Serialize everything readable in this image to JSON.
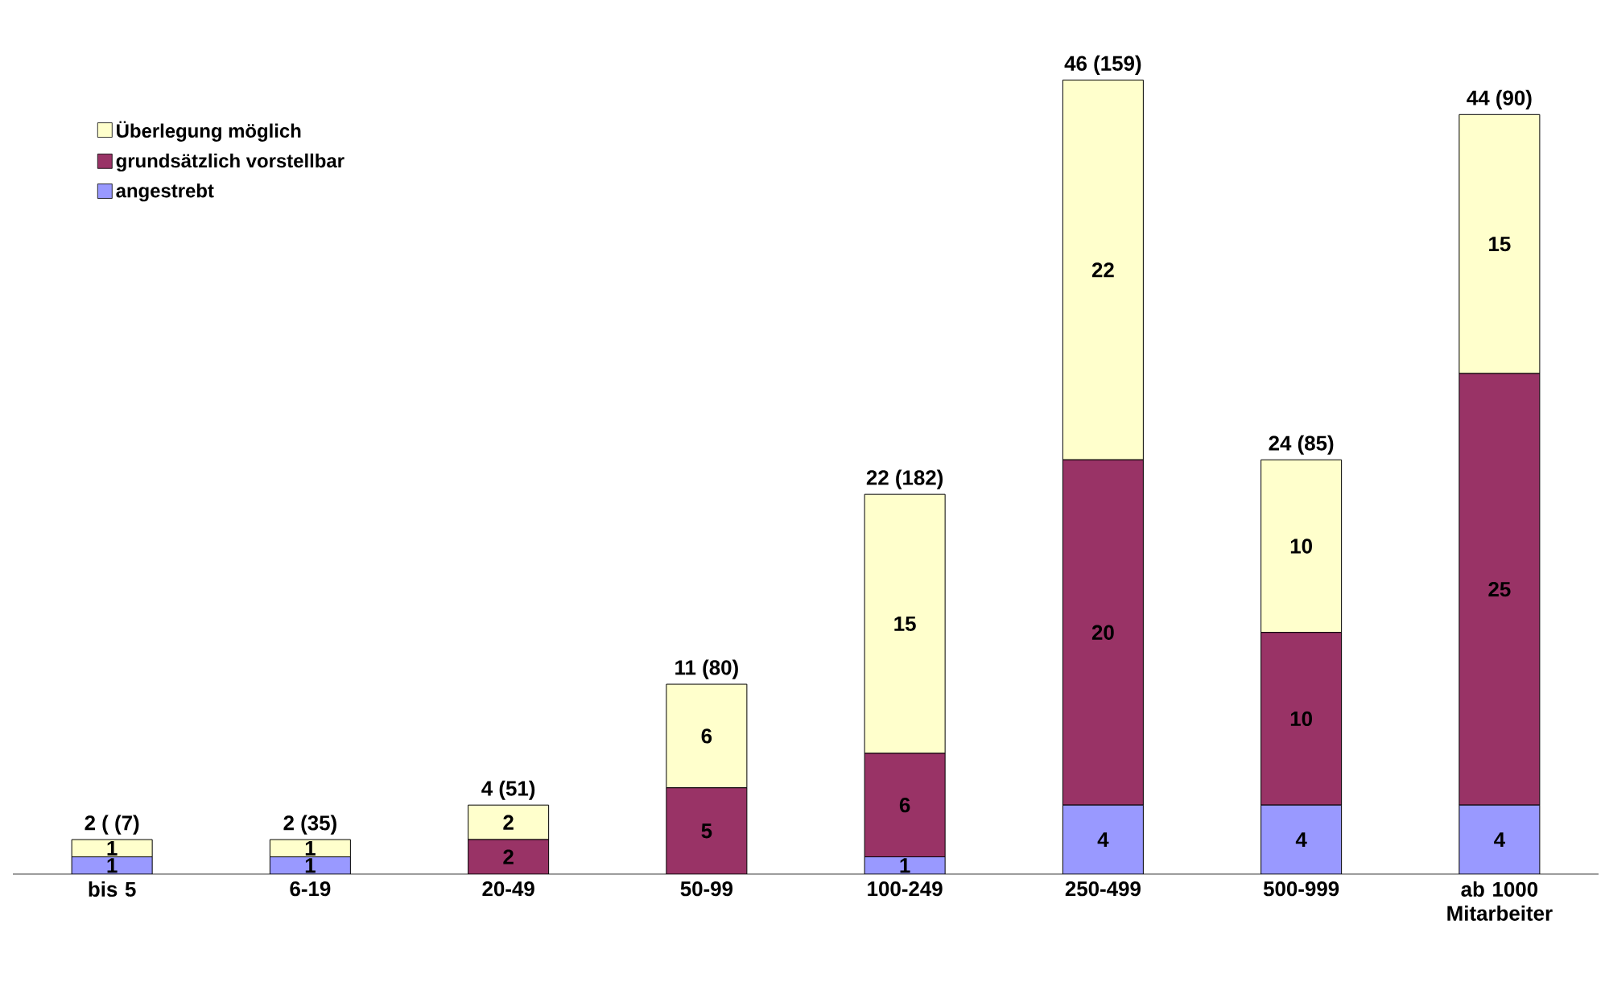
{
  "chart_data": {
    "type": "bar",
    "stacked": true,
    "data_labels": true,
    "legend": "top left",
    "categories": [
      "bis 5",
      "6-19",
      "20-49",
      "50-99",
      "100-249",
      "250-499",
      "500-999",
      "ab 1000 Mitarbeiter"
    ],
    "series": [
      {
        "name": "angestrebt",
        "color": "#9999ff",
        "values": [
          1,
          1,
          null,
          null,
          1,
          4,
          4,
          4
        ]
      },
      {
        "name": "grundsätzlich vorstellbar",
        "color": "#993366",
        "values": [
          null,
          null,
          2,
          5,
          6,
          20,
          10,
          25
        ]
      },
      {
        "name": "Überlegung möglich",
        "color": "#ffffcc",
        "values": [
          1,
          1,
          2,
          6,
          15,
          22,
          10,
          15
        ]
      }
    ],
    "totals": [
      "2 ( (7)",
      "2 (35)",
      "4 (51)",
      "11 (80)",
      "22 (182)",
      "46 (159)",
      "24 (85)",
      "44 (90)"
    ]
  }
}
